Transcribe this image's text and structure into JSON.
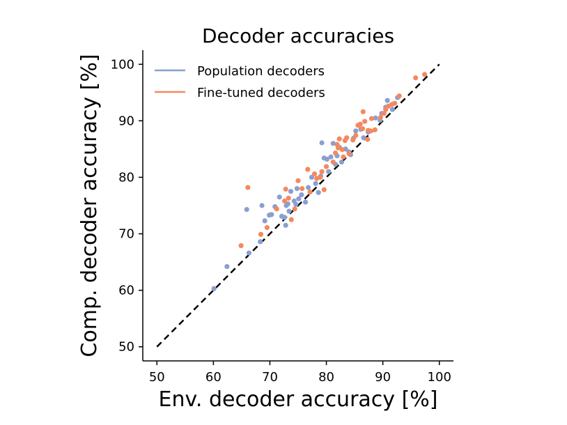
{
  "chart_data": {
    "type": "scatter",
    "title": "Decoder accuracies",
    "xlabel": "Env. decoder accuracy [%]",
    "ylabel": "Comp. decoder accuracy [%]",
    "xlim": [
      47.5,
      102.5
    ],
    "ylim": [
      47.5,
      102.5
    ],
    "xticks": [
      "50",
      "60",
      "70",
      "80",
      "90",
      "100"
    ],
    "yticks": [
      "50",
      "60",
      "70",
      "80",
      "90",
      "100"
    ],
    "grid": false,
    "legend_position": "top-left",
    "reference_line": {
      "style": "dashed",
      "color": "#000000",
      "x": [
        50,
        100
      ],
      "y": [
        50,
        100
      ]
    },
    "series": [
      {
        "name": "Population decoders",
        "color": "#8a9fd1",
        "points": [
          [
            60.1,
            60.3
          ],
          [
            62.4,
            64.2
          ],
          [
            65.9,
            74.3
          ],
          [
            66.3,
            66.6
          ],
          [
            68.3,
            68.6
          ],
          [
            68.6,
            75.0
          ],
          [
            69.1,
            72.3
          ],
          [
            69.9,
            73.3
          ],
          [
            70.3,
            73.4
          ],
          [
            70.9,
            74.8
          ],
          [
            71.7,
            76.5
          ],
          [
            72.1,
            73.1
          ],
          [
            72.6,
            72.9
          ],
          [
            72.8,
            71.5
          ],
          [
            72.9,
            75.0
          ],
          [
            73.2,
            75.3
          ],
          [
            73.4,
            74.0
          ],
          [
            73.7,
            77.5
          ],
          [
            74.3,
            75.8
          ],
          [
            74.6,
            75.2
          ],
          [
            74.8,
            78.0
          ],
          [
            75.1,
            76.2
          ],
          [
            75.6,
            76.9
          ],
          [
            76.3,
            75.6
          ],
          [
            76.8,
            78.2
          ],
          [
            77.4,
            80.0
          ],
          [
            78.1,
            78.9
          ],
          [
            78.6,
            77.3
          ],
          [
            79.0,
            80.2
          ],
          [
            79.2,
            86.1
          ],
          [
            79.6,
            83.4
          ],
          [
            80.1,
            83.2
          ],
          [
            80.4,
            81.0
          ],
          [
            80.8,
            83.6
          ],
          [
            81.2,
            86.0
          ],
          [
            81.6,
            82.3
          ],
          [
            81.9,
            83.8
          ],
          [
            82.3,
            85.3
          ],
          [
            82.7,
            82.7
          ],
          [
            83.4,
            85.0
          ],
          [
            84.0,
            84.5
          ],
          [
            84.3,
            84.0
          ],
          [
            84.8,
            86.9
          ],
          [
            85.2,
            88.2
          ],
          [
            86.1,
            88.5
          ],
          [
            86.6,
            87.0
          ],
          [
            87.4,
            88.0
          ],
          [
            88.7,
            90.5
          ],
          [
            89.5,
            90.1
          ],
          [
            89.8,
            91.3
          ],
          [
            90.5,
            92.4
          ],
          [
            90.8,
            93.6
          ],
          [
            91.7,
            92.0
          ],
          [
            92.6,
            94.1
          ]
        ]
      },
      {
        "name": "Fine-tuned decoders",
        "color": "#f4895e",
        "points": [
          [
            64.9,
            67.9
          ],
          [
            66.1,
            78.2
          ],
          [
            68.4,
            69.9
          ],
          [
            69.5,
            71.1
          ],
          [
            71.2,
            74.4
          ],
          [
            72.6,
            75.8
          ],
          [
            72.8,
            77.9
          ],
          [
            73.3,
            76.3
          ],
          [
            73.8,
            72.5
          ],
          [
            74.4,
            74.4
          ],
          [
            75.0,
            79.4
          ],
          [
            75.7,
            78.0
          ],
          [
            76.7,
            81.4
          ],
          [
            77.1,
            77.4
          ],
          [
            77.9,
            80.6
          ],
          [
            78.3,
            79.8
          ],
          [
            78.9,
            80.0
          ],
          [
            79.2,
            81.0
          ],
          [
            79.6,
            77.8
          ],
          [
            80.0,
            81.9
          ],
          [
            81.2,
            82.7
          ],
          [
            81.6,
            84.3
          ],
          [
            81.9,
            85.8
          ],
          [
            82.1,
            85.2
          ],
          [
            82.3,
            86.8
          ],
          [
            82.8,
            84.9
          ],
          [
            83.0,
            83.6
          ],
          [
            83.3,
            86.5
          ],
          [
            83.6,
            87.0
          ],
          [
            84.0,
            84.2
          ],
          [
            84.7,
            86.6
          ],
          [
            85.2,
            87.4
          ],
          [
            85.6,
            89.2
          ],
          [
            86.0,
            89.4
          ],
          [
            86.4,
            88.6
          ],
          [
            86.5,
            91.6
          ],
          [
            86.8,
            89.9
          ],
          [
            87.3,
            86.7
          ],
          [
            87.4,
            88.3
          ],
          [
            87.8,
            88.2
          ],
          [
            88.0,
            90.4
          ],
          [
            88.6,
            88.4
          ],
          [
            89.6,
            90.6
          ],
          [
            90.2,
            91.3
          ],
          [
            90.5,
            92.0
          ],
          [
            91.0,
            92.6
          ],
          [
            91.6,
            92.9
          ],
          [
            92.1,
            93.1
          ],
          [
            92.9,
            94.4
          ],
          [
            95.8,
            97.6
          ],
          [
            97.4,
            98.2
          ]
        ]
      }
    ]
  }
}
